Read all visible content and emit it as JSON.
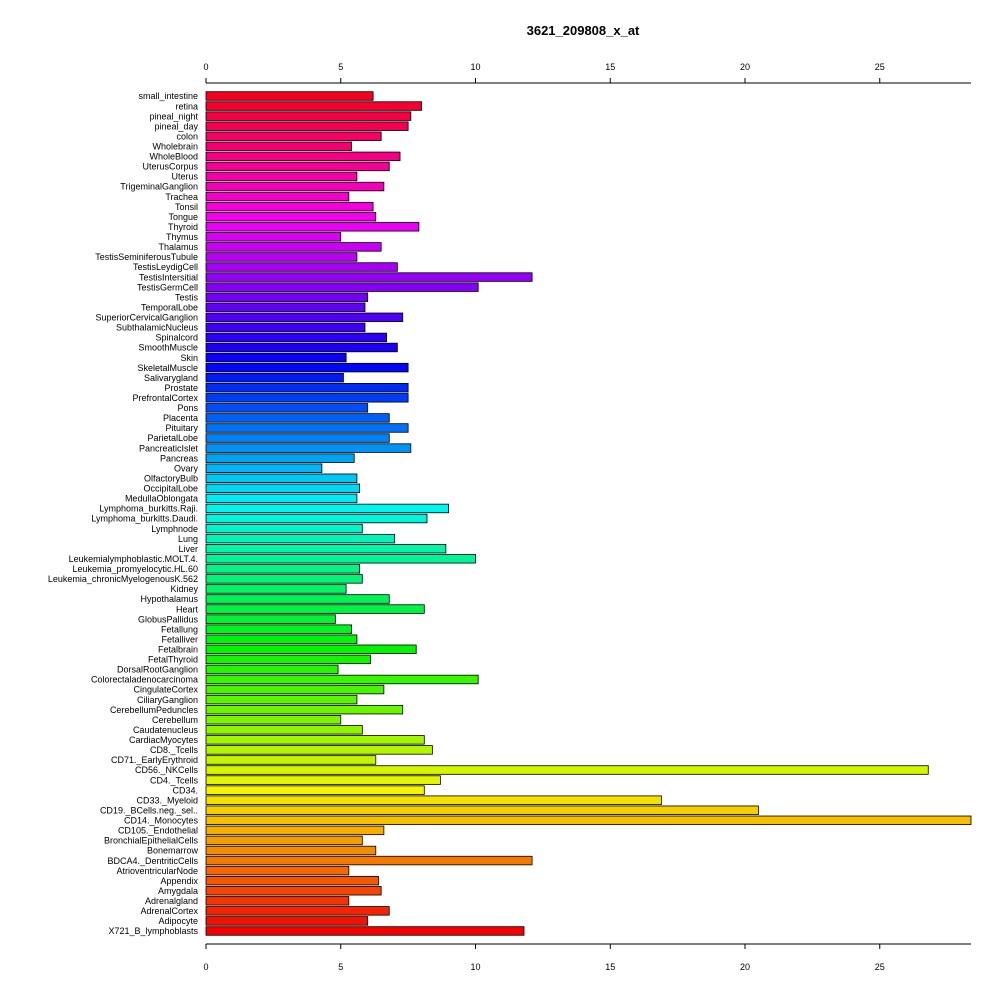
{
  "chart_data": {
    "type": "bar",
    "orientation": "horizontal",
    "title": "3621_209808_x_at",
    "xlabel": "",
    "ylabel": "",
    "xlim": [
      0,
      28.5
    ],
    "xticks": [
      0,
      5,
      10,
      15,
      20,
      25
    ],
    "axes": [
      "top",
      "bottom"
    ],
    "grid": false,
    "legend": "none",
    "color_scheme": "rainbow",
    "categories": [
      "small_intestine",
      "retina",
      "pineal_night",
      "pineal_day",
      "colon",
      "Wholebrain",
      "WholeBlood",
      "UterusCorpus",
      "Uterus",
      "TrigeminalGanglion",
      "Trachea",
      "Tonsil",
      "Tongue",
      "Thyroid",
      "Thymus",
      "Thalamus",
      "TestisSeminiferousTubule",
      "TestisLeydigCell",
      "TestisIntersitial",
      "TestisGermCell",
      "Testis",
      "TemporalLobe",
      "SuperiorCervicalGanglion",
      "SubthalamicNucleus",
      "Spinalcord",
      "SmoothMuscle",
      "Skin",
      "SkeletalMuscle",
      "Salivarygland",
      "Prostate",
      "PrefrontalCortex",
      "Pons",
      "Placenta",
      "Pituitary",
      "ParietalLobe",
      "PancreaticIslet",
      "Pancreas",
      "Ovary",
      "OlfactoryBulb",
      "OccipitalLobe",
      "MedullaOblongata",
      "Lymphoma_burkitts.Raji.",
      "Lymphoma_burkitts.Daudi.",
      "Lymphnode",
      "Lung",
      "Liver",
      "Leukemialymphoblastic.MOLT.4.",
      "Leukemia_promyelocytic.HL.60",
      "Leukemia_chronicMyelogenousK.562",
      "Kidney",
      "Hypothalamus",
      "Heart",
      "GlobusPallidus",
      "Fetallung",
      "Fetalliver",
      "Fetalbrain",
      "FetalThyroid",
      "DorsalRootGanglion",
      "Colorectaladenocarcinoma",
      "CingulateCortex",
      "CiliaryGanglion",
      "CerebellumPeduncles",
      "Cerebellum",
      "Caudatenucleus",
      "CardiacMyocytes",
      "CD8._Tcells",
      "CD71._EarlyErythroid",
      "CD56._NKCells",
      "CD4._Tcells",
      "CD34.",
      "CD33._Myeloid",
      "CD19._BCells.neg._sel..",
      "CD14._Monocytes",
      "CD105._Endothelial",
      "BronchialEpithelialCells",
      "Bonemarrow",
      "BDCA4._DentriticCells",
      "AtrioventricularNode",
      "Appendix",
      "Amygdala",
      "Adrenalgland",
      "AdrenalCortex",
      "Adipocyte",
      "X721_B_lymphoblasts"
    ],
    "values": [
      6.2,
      8.0,
      7.6,
      7.5,
      6.5,
      5.4,
      7.2,
      6.8,
      5.6,
      6.6,
      5.3,
      6.2,
      6.3,
      7.9,
      5.0,
      6.5,
      5.6,
      7.1,
      12.1,
      10.1,
      6.0,
      5.9,
      7.3,
      5.9,
      6.7,
      7.1,
      5.2,
      7.5,
      5.1,
      7.5,
      7.5,
      6.0,
      6.8,
      7.5,
      6.8,
      7.6,
      5.5,
      4.3,
      5.6,
      5.7,
      5.6,
      9.0,
      8.2,
      5.8,
      7.0,
      8.9,
      10.0,
      5.7,
      5.8,
      5.2,
      6.8,
      8.1,
      4.8,
      5.4,
      5.6,
      7.8,
      6.1,
      4.9,
      10.1,
      6.6,
      5.6,
      7.3,
      5.0,
      5.8,
      8.1,
      8.4,
      6.3,
      26.8,
      8.7,
      8.1,
      16.9,
      20.5,
      28.5,
      6.6,
      5.8,
      6.3,
      12.1,
      5.3,
      6.4,
      6.5,
      5.3,
      6.8,
      6.0,
      11.8
    ]
  }
}
